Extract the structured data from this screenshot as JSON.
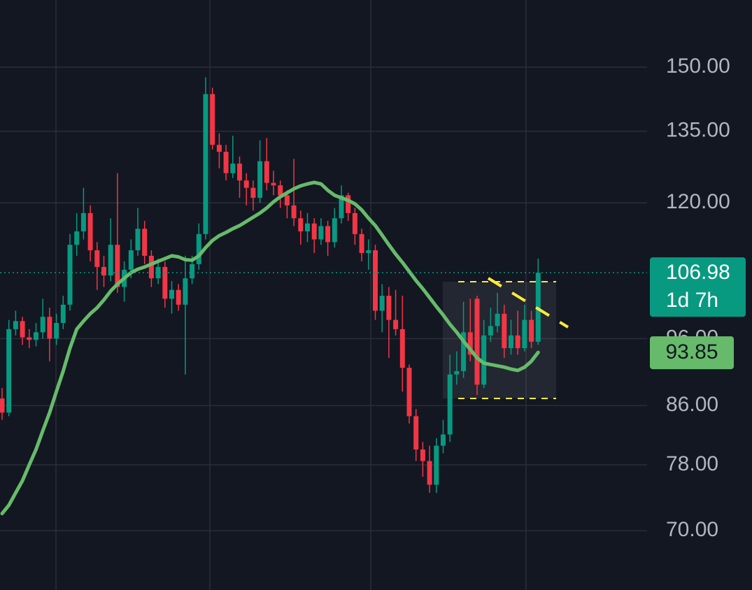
{
  "chart_data": {
    "type": "candlestick",
    "log_scale": true,
    "grid": true,
    "up_color": "#089981",
    "down_color": "#f23645",
    "ylim": [
      63.5,
      167.5
    ],
    "yticks": [
      {
        "value": 150,
        "label": "150.00"
      },
      {
        "value": 135,
        "label": "135.00"
      },
      {
        "value": 120,
        "label": "120.00"
      },
      {
        "value": 96,
        "label": "96.00"
      },
      {
        "value": 86,
        "label": "86.00"
      },
      {
        "value": 78,
        "label": "78.00"
      },
      {
        "value": 70,
        "label": "70.00"
      }
    ],
    "open": [
      87,
      85,
      97.5,
      98.8,
      96.2,
      95.8,
      97,
      99.5,
      96,
      98.5,
      101.5,
      112,
      114.5,
      118,
      111,
      108,
      106.5,
      112,
      104.5,
      107.5,
      111,
      115,
      110,
      106,
      108,
      102.5,
      104,
      101.5,
      106,
      108.5,
      114,
      143.5,
      132,
      130.5,
      126,
      128,
      124.5,
      123,
      121,
      128.5,
      124,
      123.5,
      121.5,
      119.5,
      117,
      114.5,
      116,
      113,
      115.5,
      112.5,
      117,
      121.5,
      118,
      114,
      110.5,
      111,
      100.5,
      103,
      99,
      97.5,
      91.5,
      84.5,
      80,
      78.5,
      75.5,
      80.5,
      82,
      90.5,
      91,
      97,
      102.5,
      89,
      96.5,
      98,
      100,
      94.5,
      96.5,
      94.5,
      99,
      95.5
    ],
    "high": [
      88.5,
      99,
      100.5,
      99.5,
      97.5,
      98.5,
      102.5,
      101,
      100,
      103,
      114,
      118,
      123,
      119.5,
      112.5,
      110,
      117,
      126,
      109,
      113,
      119,
      116.5,
      111,
      109.5,
      109,
      105.5,
      105,
      110,
      110,
      116,
      147.5,
      145,
      134.5,
      132,
      134,
      129.5,
      126,
      124.5,
      133,
      133.5,
      126.5,
      124.5,
      122.5,
      129,
      118.5,
      118,
      117,
      117,
      116.5,
      119,
      123.5,
      122,
      119,
      115,
      113,
      112,
      105,
      104.5,
      104,
      103,
      92,
      85.5,
      81,
      80.5,
      81.5,
      84,
      93.5,
      94,
      102,
      102.5,
      103,
      99,
      101,
      103.5,
      101.5,
      99,
      100.5,
      101.5,
      100.5,
      109.5
    ],
    "low": [
      84,
      84.5,
      96.5,
      95,
      94.5,
      94.8,
      96,
      92.5,
      95,
      97.5,
      100.5,
      110,
      113,
      109,
      104,
      104.5,
      105.5,
      103.5,
      102,
      106,
      110,
      108.5,
      104.5,
      105,
      101,
      100,
      100.5,
      90.5,
      105,
      107.5,
      113,
      131,
      127,
      124.5,
      125,
      121,
      119.5,
      118.5,
      120,
      122.5,
      121.5,
      119,
      117,
      115.5,
      112,
      112.5,
      110.5,
      112,
      110,
      111.5,
      116,
      116.5,
      112,
      109,
      107.5,
      99,
      97,
      93,
      96.5,
      88,
      83.5,
      78.5,
      76.5,
      74.5,
      74.5,
      79.5,
      81,
      89,
      90,
      92.5,
      87.5,
      88.5,
      95.5,
      97,
      93,
      93.5,
      93.5,
      94,
      94.5,
      95
    ],
    "close": [
      85,
      97.5,
      98.8,
      96.2,
      95.8,
      97,
      99.5,
      96,
      98.5,
      101.5,
      112,
      114.5,
      118,
      111,
      108,
      106.5,
      112,
      104.5,
      107.5,
      111,
      115,
      110,
      106,
      108,
      102.5,
      104,
      101.5,
      106,
      108.5,
      114,
      143.5,
      132,
      130.5,
      126,
      128,
      124.5,
      123,
      121,
      128.5,
      124,
      123.5,
      121.5,
      119.5,
      117,
      114.5,
      116,
      113,
      115.5,
      112.5,
      117,
      121.5,
      118,
      114,
      110.5,
      111,
      100.5,
      103,
      99,
      97.5,
      91.5,
      84.5,
      80,
      78.5,
      75.5,
      80.5,
      82,
      90.5,
      91,
      97,
      93.5,
      89,
      96.5,
      98,
      100,
      94.5,
      96.5,
      94.5,
      99,
      95.5,
      106.98
    ],
    "countdown": "1d 7h",
    "overlays": [
      {
        "type": "line",
        "color": "#66bb6a",
        "values": [
          72,
          73,
          74.5,
          76,
          78,
          80,
          82.5,
          85,
          88,
          91,
          94.5,
          97.5,
          98.8,
          100,
          101,
          102.3,
          103.8,
          105,
          106,
          107,
          107.6,
          108,
          108.5,
          109,
          109.5,
          110,
          109.8,
          109.3,
          109.2,
          110,
          111.5,
          112.8,
          113.7,
          114.3,
          115,
          115.6,
          116.4,
          117.2,
          118,
          119,
          120.2,
          121.2,
          122,
          122.8,
          123.4,
          123.8,
          124.1,
          123.8,
          122.5,
          121.5,
          121,
          120.5,
          119.8,
          118.6,
          117,
          115.6,
          113.8,
          112,
          110.3,
          108.8,
          107.2,
          105.6,
          104.2,
          102.7,
          101.2,
          99.8,
          98.3,
          97,
          95.6,
          94.3,
          93,
          92.2,
          92,
          91.8,
          91.6,
          91.3,
          91.1,
          91.6,
          92.5,
          93.85
        ]
      }
    ]
  }
}
